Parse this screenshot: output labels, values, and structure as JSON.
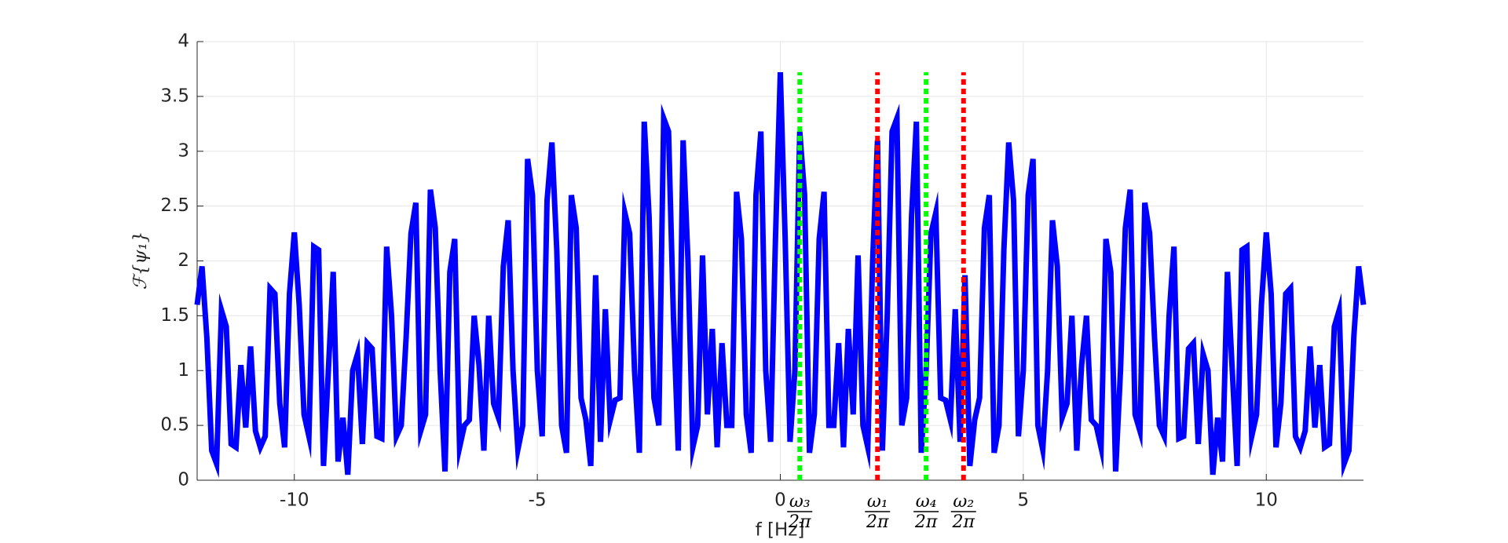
{
  "chart_data": {
    "type": "line",
    "xlabel": "f [Hz]",
    "ylabel": "ℱ{ψ₁}",
    "xlim": [
      -12,
      12
    ],
    "xticks": [
      -10,
      -5,
      0,
      5,
      10
    ],
    "ylim": [
      0,
      4
    ],
    "yticks": [
      0,
      0.5,
      1,
      1.5,
      2,
      2.5,
      3,
      3.5,
      4
    ],
    "grid": true,
    "color": "#0000ff",
    "x": [
      -12,
      -11.9,
      -11.8,
      -11.7,
      -11.6,
      -11.5,
      -11.4,
      -11.3,
      -11.2,
      -11.1,
      -11,
      -10.9,
      -10.8,
      -10.7,
      -10.6,
      -10.5,
      -10.4,
      -10.3,
      -10.2,
      -10.1,
      -10,
      -9.9,
      -9.8,
      -9.7,
      -9.6,
      -9.5,
      -9.4,
      -9.3,
      -9.2,
      -9.1,
      -9,
      -8.9,
      -8.8,
      -8.7,
      -8.6,
      -8.5,
      -8.4,
      -8.3,
      -8.2,
      -8.1,
      -8,
      -7.9,
      -7.8,
      -7.7,
      -7.6,
      -7.5,
      -7.4,
      -7.3,
      -7.2,
      -7.1,
      -7,
      -6.9,
      -6.8,
      -6.7,
      -6.6,
      -6.5,
      -6.4,
      -6.3,
      -6.2,
      -6.1,
      -6,
      -5.9,
      -5.8,
      -5.7,
      -5.6,
      -5.5,
      -5.4,
      -5.3,
      -5.2,
      -5.1,
      -5,
      -4.9,
      -4.8,
      -4.7,
      -4.6,
      -4.5,
      -4.4,
      -4.3,
      -4.2,
      -4.1,
      -4,
      -3.9,
      -3.8,
      -3.7,
      -3.6,
      -3.5,
      -3.4,
      -3.3,
      -3.2,
      -3.1,
      -3,
      -2.9,
      -2.8,
      -2.7,
      -2.6,
      -2.5,
      -2.4,
      -2.3,
      -2.2,
      -2.1,
      -2,
      -1.9,
      -1.8,
      -1.7,
      -1.6,
      -1.5,
      -1.4,
      -1.3,
      -1.2,
      -1.1,
      -1,
      -0.9,
      -0.8,
      -0.7,
      -0.6,
      -0.5,
      -0.4,
      -0.3,
      -0.2,
      -0.1,
      0,
      0.1,
      0.2,
      0.3,
      0.4,
      0.5,
      0.6,
      0.7,
      0.8,
      0.9,
      1,
      1.1,
      1.2,
      1.3,
      1.4,
      1.5,
      1.6,
      1.7,
      1.8,
      1.9,
      2,
      2.1,
      2.2,
      2.3,
      2.4,
      2.5,
      2.6,
      2.7,
      2.8,
      2.9,
      3,
      3.1,
      3.2,
      3.3,
      3.4,
      3.5,
      3.6,
      3.7,
      3.8,
      3.9,
      4,
      4.1,
      4.2,
      4.3,
      4.4,
      4.5,
      4.6,
      4.7,
      4.8,
      4.9,
      5,
      5.1,
      5.2,
      5.3,
      5.4,
      5.5,
      5.6,
      5.7,
      5.8,
      5.9,
      6,
      6.1,
      6.2,
      6.3,
      6.4,
      6.5,
      6.6,
      6.7,
      6.8,
      6.9,
      7,
      7.1,
      7.2,
      7.3,
      7.4,
      7.5,
      7.6,
      7.7,
      7.8,
      7.9,
      8,
      8.1,
      8.2,
      8.3,
      8.4,
      8.5,
      8.6,
      8.7,
      8.8,
      8.9,
      9,
      9.1,
      9.2,
      9.3,
      9.4,
      9.5,
      9.6,
      9.7,
      9.8,
      9.9,
      10,
      10.1,
      10.2,
      10.3,
      10.4,
      10.5,
      10.6,
      10.7,
      10.8,
      10.9,
      11,
      11.1,
      11.2,
      11.3,
      11.4,
      11.5,
      11.6,
      11.7,
      11.8,
      11.9,
      12
    ],
    "values": [
      1.6,
      1.95,
      1.3,
      0.27,
      0.15,
      1.55,
      1.4,
      0.33,
      0.3,
      1.05,
      0.48,
      1.22,
      0.45,
      0.3,
      0.4,
      1.75,
      1.7,
      0.7,
      0.3,
      1.7,
      2.26,
      1.6,
      0.6,
      0.4,
      2.13,
      2.1,
      0.13,
      1.0,
      1.9,
      0.17,
      0.57,
      0.05,
      1.0,
      1.15,
      0.33,
      1.25,
      1.2,
      0.4,
      0.38,
      2.13,
      1.5,
      0.4,
      0.5,
      1.3,
      2.25,
      2.53,
      0.45,
      0.6,
      2.65,
      2.3,
      1.0,
      0.08,
      1.9,
      2.2,
      0.3,
      0.5,
      0.55,
      1.5,
      1.05,
      0.27,
      1.5,
      0.7,
      0.57,
      1.95,
      2.37,
      1.0,
      0.28,
      0.5,
      2.93,
      2.6,
      1.0,
      0.4,
      2.55,
      3.08,
      2.1,
      0.5,
      0.25,
      2.6,
      2.3,
      0.75,
      0.55,
      0.13,
      1.87,
      0.35,
      1.56,
      0.55,
      0.73,
      0.75,
      2.44,
      2.25,
      1.0,
      0.25,
      3.27,
      2.4,
      0.75,
      0.5,
      3.3,
      3.18,
      1.5,
      0.27,
      3.1,
      2.0,
      0.3,
      0.5,
      2.05,
      0.6,
      1.38,
      0.3,
      1.25,
      0.5,
      0.5,
      2.63,
      2.2,
      0.6,
      0.25,
      2.6,
      3.18,
      1.0,
      0.35,
      2.2,
      3.72,
      2.2,
      0.35,
      1.0,
      3.18,
      2.6,
      0.25,
      0.6,
      2.2,
      2.63,
      0.5,
      0.5,
      1.25,
      0.3,
      1.38,
      0.6,
      2.05,
      0.5,
      0.3,
      2.0,
      3.1,
      0.27,
      1.5,
      3.18,
      3.3,
      0.5,
      0.75,
      2.4,
      3.27,
      0.25,
      1.0,
      2.25,
      2.44,
      0.75,
      0.73,
      0.55,
      1.56,
      0.35,
      1.87,
      0.13,
      0.55,
      0.75,
      2.3,
      2.6,
      0.25,
      0.5,
      2.1,
      3.08,
      2.55,
      0.4,
      1.0,
      2.6,
      2.93,
      0.5,
      0.28,
      1.0,
      2.37,
      1.95,
      0.57,
      0.7,
      1.5,
      0.27,
      1.05,
      1.5,
      0.55,
      0.5,
      0.3,
      2.2,
      1.9,
      0.08,
      1.0,
      2.3,
      2.65,
      0.6,
      0.45,
      2.53,
      2.25,
      1.3,
      0.5,
      0.4,
      1.5,
      2.13,
      0.38,
      0.4,
      1.2,
      1.25,
      0.33,
      1.15,
      1.0,
      0.05,
      0.57,
      0.17,
      1.9,
      1.0,
      0.13,
      2.1,
      2.13,
      0.4,
      0.6,
      1.6,
      2.26,
      1.7,
      0.3,
      0.7,
      1.7,
      1.75,
      0.4,
      0.3,
      0.45,
      1.22,
      0.48,
      1.05,
      0.3,
      0.33,
      1.4,
      1.55,
      0.15,
      0.27,
      1.3,
      1.95,
      1.6
    ],
    "markers": [
      {
        "x": 0.4,
        "ymax": 3.72,
        "color": "#00ff00",
        "numerator": "ω₃",
        "denominator": "2π"
      },
      {
        "x": 2.0,
        "ymax": 3.72,
        "color": "#ff0000",
        "numerator": "ω₁",
        "denominator": "2π"
      },
      {
        "x": 3.0,
        "ymax": 3.72,
        "color": "#00ff00",
        "numerator": "ω₄",
        "denominator": "2π"
      },
      {
        "x": 3.77,
        "ymax": 3.72,
        "color": "#ff0000",
        "numerator": "ω₂",
        "denominator": "2π"
      }
    ]
  }
}
